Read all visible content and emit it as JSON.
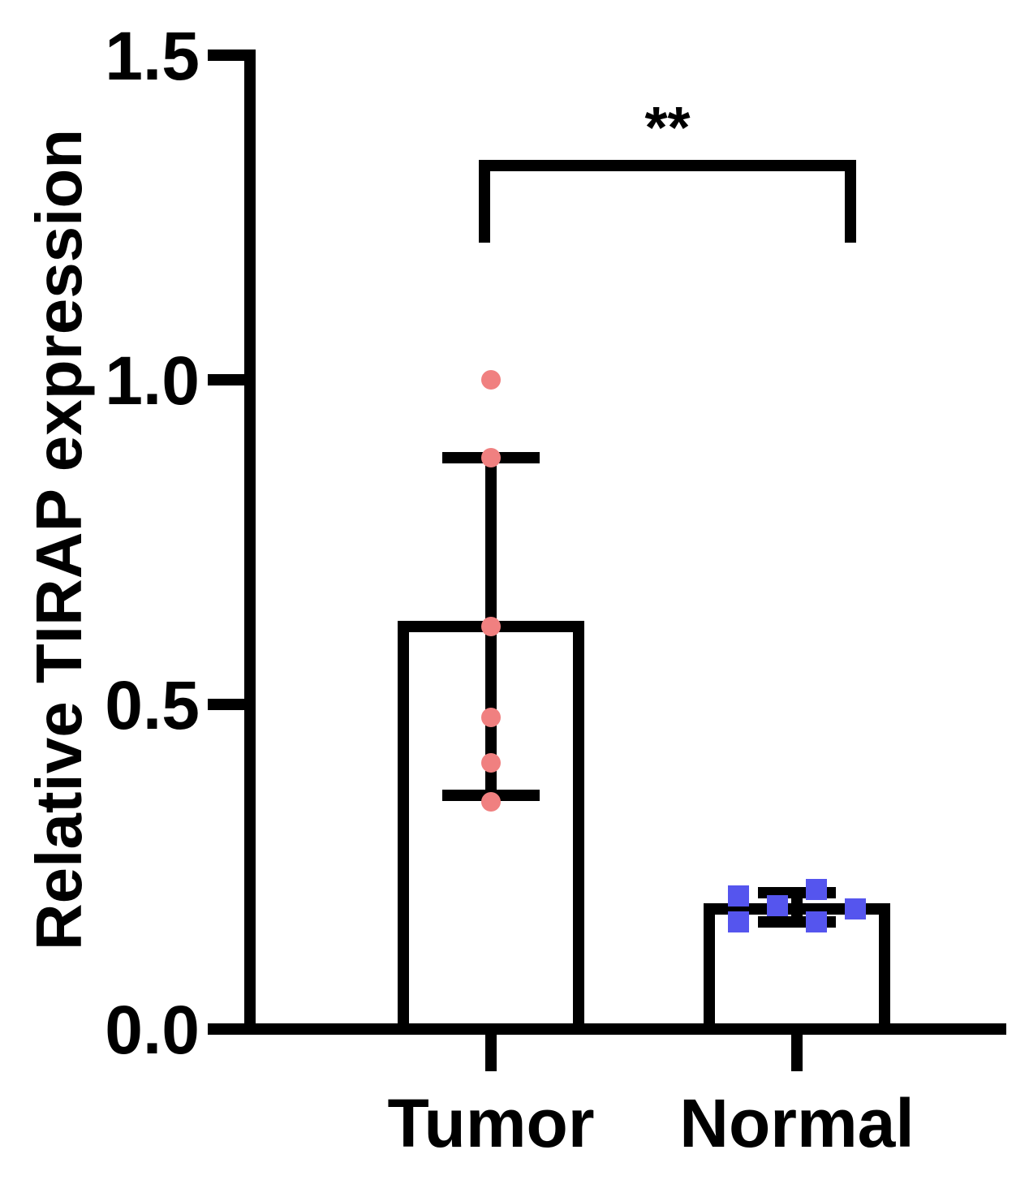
{
  "chart_data": {
    "type": "bar",
    "ylabel": "Relative TIRAP expression",
    "ylim": [
      0,
      1.5
    ],
    "yticks": [
      {
        "value": 0.0,
        "label": "0.0"
      },
      {
        "value": 0.5,
        "label": "0.5"
      },
      {
        "value": 1.0,
        "label": "1.0"
      },
      {
        "value": 1.5,
        "label": "1.5"
      }
    ],
    "categories": [
      "Tumor",
      "Normal"
    ],
    "bars": [
      {
        "category": "Tumor",
        "mean": 0.62,
        "error_low": 0.36,
        "error_high": 0.88,
        "points": [
          1.0,
          0.88,
          0.62,
          0.48,
          0.41,
          0.35
        ],
        "point_shape": "circle",
        "point_color": "#F08080"
      },
      {
        "category": "Normal",
        "mean": 0.185,
        "error_low": 0.165,
        "error_high": 0.21,
        "points": [
          0.205,
          0.165,
          0.19,
          0.215,
          0.165,
          0.185
        ],
        "point_shape": "square",
        "point_color": "#5555EE"
      }
    ],
    "significance": {
      "label": "**",
      "from": "Tumor",
      "to": "Normal",
      "y": 1.33
    },
    "grid": false,
    "legend": "none"
  }
}
